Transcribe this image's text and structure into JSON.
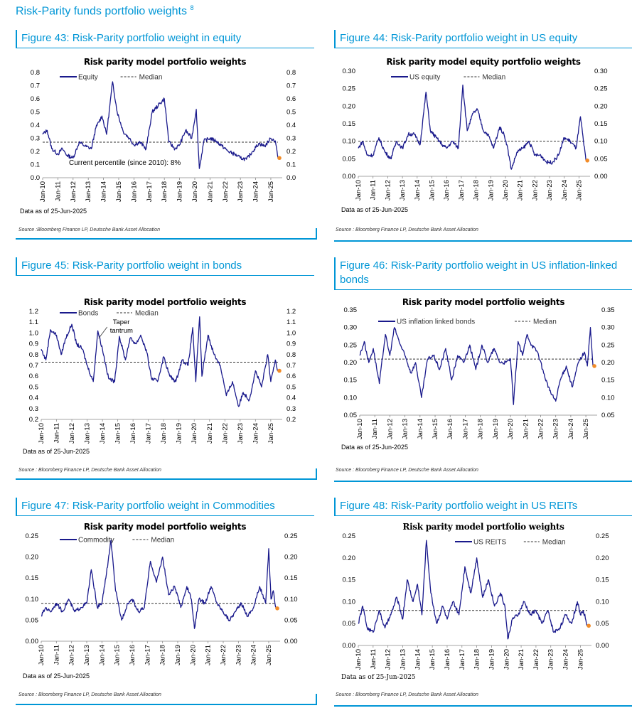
{
  "page": {
    "title": "Risk-Parity funds portfolio weights",
    "footnote_marker": "8"
  },
  "colors": {
    "accent": "#0096d6",
    "series": "#1a1a8c",
    "median": "#333333",
    "latest_marker": "#f28c28"
  },
  "panels": [
    {
      "figure_title": "Figure 43: Risk-Parity portfolio weight in equity",
      "as_of": "Data as of 25-Jun-2025",
      "source": "Source :Bloomberg Finance LP, Deutsche Bank Asset Allocation",
      "chart_data": {
        "type": "line",
        "title": "Risk parity model portfolio weights",
        "xlabel": "",
        "ylabel": "",
        "x_ticks": [
          "Jan-10",
          "Jan-11",
          "Jan-12",
          "Jan-13",
          "Jan-14",
          "Jan-15",
          "Jan-16",
          "Jan-17",
          "Jan-18",
          "Jan-19",
          "Jan-20",
          "Jan-21",
          "Jan-22",
          "Jan-23",
          "Jan-24",
          "Jan-25"
        ],
        "ylim": [
          0,
          0.8
        ],
        "y_ticks": [
          "0.0",
          "0.1",
          "0.2",
          "0.3",
          "0.4",
          "0.5",
          "0.6",
          "0.7",
          "0.8"
        ],
        "series": [
          {
            "name": "Equity",
            "x": [
              2010.0,
              2010.3,
              2010.6,
              2011.0,
              2011.3,
              2011.6,
              2012.0,
              2012.4,
              2012.8,
              2013.2,
              2013.5,
              2013.9,
              2014.2,
              2014.6,
              2014.9,
              2015.3,
              2015.7,
              2016.0,
              2016.4,
              2016.8,
              2017.2,
              2017.6,
              2018.0,
              2018.3,
              2018.7,
              2019.0,
              2019.4,
              2019.8,
              2020.1,
              2020.3,
              2020.6,
              2021.0,
              2021.4,
              2021.8,
              2022.2,
              2022.6,
              2023.0,
              2023.4,
              2023.8,
              2024.2,
              2024.6,
              2025.0,
              2025.3,
              2025.47
            ],
            "y": [
              0.33,
              0.36,
              0.22,
              0.18,
              0.22,
              0.17,
              0.15,
              0.27,
              0.24,
              0.22,
              0.38,
              0.47,
              0.33,
              0.73,
              0.5,
              0.35,
              0.3,
              0.25,
              0.27,
              0.22,
              0.5,
              0.55,
              0.6,
              0.27,
              0.22,
              0.25,
              0.36,
              0.3,
              0.52,
              0.07,
              0.28,
              0.3,
              0.28,
              0.24,
              0.2,
              0.18,
              0.15,
              0.14,
              0.2,
              0.26,
              0.24,
              0.3,
              0.28,
              0.15
            ]
          },
          {
            "name": "Median",
            "y": [
              0.27
            ]
          }
        ],
        "latest": {
          "x": 2025.47,
          "y": 0.15
        },
        "annotations": [
          "Current percentile (since 2010): 8%"
        ],
        "legend_position": "top-left"
      }
    },
    {
      "figure_title": "Figure 44: Risk-Parity portfolio weight in US equity",
      "as_of": "Data as of 25-Jun-2025",
      "source": "Source : Bloomberg Finance LP, Deutsche Bank Asset Allocation",
      "chart_data": {
        "type": "line",
        "title": "Risk parity model equity portfolio weights",
        "xlabel": "",
        "ylabel": "",
        "x_ticks": [
          "Jan-10",
          "Jan-11",
          "Jan-12",
          "Jan-13",
          "Jan-14",
          "Jan-15",
          "Jan-16",
          "Jan-17",
          "Jan-18",
          "Jan-19",
          "Jan-20",
          "Jan-21",
          "Jan-22",
          "Jan-23",
          "Jan-24",
          "Jan-25"
        ],
        "ylim": [
          0,
          0.3
        ],
        "y_ticks": [
          "0.00",
          "0.05",
          "0.10",
          "0.15",
          "0.20",
          "0.25",
          "0.30"
        ],
        "series": [
          {
            "name": "US equity",
            "x": [
              2010.0,
              2010.3,
              2010.6,
              2011.0,
              2011.4,
              2011.8,
              2012.2,
              2012.6,
              2013.0,
              2013.4,
              2013.8,
              2014.2,
              2014.6,
              2014.9,
              2015.3,
              2015.7,
              2016.0,
              2016.4,
              2016.8,
              2017.1,
              2017.4,
              2017.8,
              2018.1,
              2018.5,
              2018.8,
              2019.2,
              2019.6,
              2019.9,
              2020.1,
              2020.4,
              2020.8,
              2021.2,
              2021.6,
              2022.0,
              2022.4,
              2022.8,
              2023.2,
              2023.6,
              2024.0,
              2024.4,
              2024.8,
              2025.1,
              2025.3,
              2025.47
            ],
            "y": [
              0.08,
              0.1,
              0.06,
              0.06,
              0.11,
              0.07,
              0.05,
              0.1,
              0.08,
              0.12,
              0.12,
              0.09,
              0.24,
              0.13,
              0.11,
              0.09,
              0.08,
              0.1,
              0.08,
              0.26,
              0.13,
              0.18,
              0.19,
              0.13,
              0.12,
              0.08,
              0.14,
              0.12,
              0.09,
              0.02,
              0.07,
              0.08,
              0.1,
              0.06,
              0.06,
              0.04,
              0.04,
              0.06,
              0.11,
              0.1,
              0.08,
              0.17,
              0.1,
              0.045
            ]
          },
          {
            "name": "Median",
            "y": [
              0.1
            ]
          }
        ],
        "latest": {
          "x": 2025.47,
          "y": 0.045
        },
        "legend_position": "top-left"
      }
    },
    {
      "figure_title": "Figure 45: Risk-Parity portfolio weight in bonds",
      "as_of": "Data as of 25-Jun-2025",
      "source": "Source : Bloomberg Finance LP, Deutsche Bank Asset Allocation",
      "chart_data": {
        "type": "line",
        "title": "Risk parity model portfolio weights",
        "xlabel": "",
        "ylabel": "",
        "x_ticks": [
          "Jan-10",
          "Jan-11",
          "Jan-12",
          "Jan-13",
          "Jan-14",
          "Jan-15",
          "Jan-16",
          "Jan-17",
          "Jan-18",
          "Jan-19",
          "Jan-20",
          "Jan-21",
          "Jan-22",
          "Jan-23",
          "Jan-24",
          "Jan-25"
        ],
        "ylim": [
          0.2,
          1.2
        ],
        "y_ticks": [
          "0.2",
          "0.3",
          "0.4",
          "0.5",
          "0.6",
          "0.7",
          "0.8",
          "0.9",
          "1.0",
          "1.1",
          "1.2"
        ],
        "series": [
          {
            "name": "Bonds",
            "x": [
              2010.0,
              2010.3,
              2010.6,
              2011.0,
              2011.3,
              2011.6,
              2012.0,
              2012.3,
              2012.7,
              2013.0,
              2013.4,
              2013.7,
              2014.0,
              2014.4,
              2014.8,
              2015.1,
              2015.5,
              2015.8,
              2016.2,
              2016.5,
              2016.9,
              2017.2,
              2017.6,
              2018.0,
              2018.4,
              2018.8,
              2019.2,
              2019.6,
              2019.9,
              2020.1,
              2020.35,
              2020.5,
              2020.9,
              2021.3,
              2021.7,
              2022.1,
              2022.5,
              2022.9,
              2023.2,
              2023.6,
              2024.0,
              2024.4,
              2024.8,
              2025.0,
              2025.3,
              2025.47
            ],
            "y": [
              0.85,
              0.75,
              1.03,
              0.98,
              0.8,
              0.95,
              1.08,
              0.9,
              0.85,
              0.7,
              0.55,
              1.02,
              0.85,
              0.58,
              0.55,
              0.97,
              0.75,
              0.95,
              0.9,
              0.98,
              0.82,
              0.58,
              0.55,
              0.78,
              0.6,
              0.55,
              0.75,
              0.7,
              1.05,
              0.55,
              1.15,
              0.6,
              0.98,
              0.8,
              0.7,
              0.42,
              0.55,
              0.32,
              0.45,
              0.38,
              0.65,
              0.5,
              0.8,
              0.55,
              0.75,
              0.65
            ]
          },
          {
            "name": "Median",
            "y": [
              0.73
            ]
          }
        ],
        "latest": {
          "x": 2025.47,
          "y": 0.65
        },
        "annotations": [
          "Taper",
          "tantrum"
        ],
        "legend_position": "top-left"
      }
    },
    {
      "figure_title": "Figure 46: Risk-Parity portfolio weight in US inflation-linked bonds",
      "as_of": "Data as of 25-Jun-2025",
      "source": "Source : Bloomberg Finance LP, Deutsche Bank Asset Allocation",
      "chart_data": {
        "type": "line",
        "title": "Risk parity model portfolio weights",
        "xlabel": "",
        "ylabel": "",
        "x_ticks": [
          "Jan-10",
          "Jan-11",
          "Jan-12",
          "Jan-13",
          "Jan-14",
          "Jan-15",
          "Jan-16",
          "Jan-17",
          "Jan-18",
          "Jan-19",
          "Jan-20",
          "Jan-21",
          "Jan-22",
          "Jan-23",
          "Jan-24",
          "Jan-25"
        ],
        "ylim": [
          0.05,
          0.35
        ],
        "y_ticks": [
          "0.05",
          "0.10",
          "0.15",
          "0.20",
          "0.25",
          "0.30",
          "0.35"
        ],
        "series": [
          {
            "name": "US inflation linked bonds",
            "x": [
              2010.0,
              2010.3,
              2010.6,
              2010.9,
              2011.3,
              2011.7,
              2012.0,
              2012.3,
              2012.7,
              2013.0,
              2013.4,
              2013.7,
              2014.1,
              2014.5,
              2014.9,
              2015.3,
              2015.7,
              2016.1,
              2016.5,
              2016.9,
              2017.3,
              2017.7,
              2018.1,
              2018.5,
              2018.9,
              2019.3,
              2019.7,
              2020.0,
              2020.2,
              2020.5,
              2020.8,
              2021.1,
              2021.4,
              2021.8,
              2022.2,
              2022.6,
              2023.0,
              2023.3,
              2023.7,
              2024.1,
              2024.5,
              2024.9,
              2025.1,
              2025.3,
              2025.47
            ],
            "y": [
              0.22,
              0.26,
              0.2,
              0.24,
              0.14,
              0.28,
              0.22,
              0.3,
              0.25,
              0.22,
              0.17,
              0.2,
              0.1,
              0.21,
              0.22,
              0.18,
              0.24,
              0.15,
              0.22,
              0.2,
              0.25,
              0.18,
              0.25,
              0.2,
              0.24,
              0.2,
              0.2,
              0.21,
              0.08,
              0.26,
              0.22,
              0.28,
              0.25,
              0.23,
              0.17,
              0.12,
              0.09,
              0.15,
              0.19,
              0.13,
              0.2,
              0.23,
              0.19,
              0.3,
              0.19
            ]
          },
          {
            "name": "Median",
            "y": [
              0.21
            ]
          }
        ],
        "latest": {
          "x": 2025.47,
          "y": 0.19
        },
        "legend_position": "top-left"
      }
    },
    {
      "figure_title": "Figure 47: Risk-Parity portfolio weight in Commodities",
      "as_of": "Data as of 25-Jun-2025",
      "source": "Source : Bloomberg Finance LP, Deutsche Bank Asset Allocation",
      "chart_data": {
        "type": "line",
        "title": "Risk parity model portfolio weights",
        "xlabel": "",
        "ylabel": "",
        "x_ticks": [
          "Jan-10",
          "Jan-11",
          "Jan-12",
          "Jan-13",
          "Jan-14",
          "Jan-15",
          "Jan-16",
          "Jan-17",
          "Jan-18",
          "Jan-19",
          "Jan-20",
          "Jan-21",
          "Jan-22",
          "Jan-23",
          "Jan-24",
          "Jan-25"
        ],
        "ylim": [
          0,
          0.25
        ],
        "y_ticks": [
          "0.00",
          "0.05",
          "0.10",
          "0.15",
          "0.20",
          "0.25"
        ],
        "series": [
          {
            "name": "Commodity",
            "x": [
              2010.0,
              2010.3,
              2010.6,
              2011.0,
              2011.4,
              2011.8,
              2012.2,
              2012.6,
              2013.0,
              2013.3,
              2013.7,
              2014.0,
              2014.3,
              2014.6,
              2014.9,
              2015.3,
              2015.7,
              2016.0,
              2016.4,
              2016.8,
              2017.2,
              2017.6,
              2018.0,
              2018.4,
              2018.8,
              2019.2,
              2019.6,
              2019.9,
              2020.1,
              2020.4,
              2020.8,
              2021.2,
              2021.6,
              2022.0,
              2022.4,
              2022.8,
              2023.2,
              2023.6,
              2024.0,
              2024.4,
              2024.8,
              2025.0,
              2025.15,
              2025.3,
              2025.47
            ],
            "y": [
              0.06,
              0.08,
              0.07,
              0.09,
              0.07,
              0.1,
              0.07,
              0.08,
              0.09,
              0.17,
              0.08,
              0.09,
              0.16,
              0.24,
              0.12,
              0.05,
              0.09,
              0.1,
              0.07,
              0.08,
              0.19,
              0.14,
              0.2,
              0.11,
              0.13,
              0.08,
              0.13,
              0.1,
              0.03,
              0.1,
              0.09,
              0.13,
              0.09,
              0.07,
              0.05,
              0.07,
              0.09,
              0.06,
              0.08,
              0.13,
              0.09,
              0.22,
              0.1,
              0.12,
              0.08
            ]
          },
          {
            "name": "Median",
            "y": [
              0.09
            ]
          }
        ],
        "latest": {
          "x": 2025.47,
          "y": 0.078
        },
        "legend_position": "top-left"
      }
    },
    {
      "figure_title": "Figure 48: Risk-Parity portfolio weight in US REITs",
      "as_of": "Data as of 25-Jun-2025",
      "source": "Source : Bloomberg Finance LP, Deutsche Bank Asset Allocation",
      "chart_data": {
        "type": "line",
        "title": "Risk parity model portfolio weights",
        "xlabel": "",
        "ylabel": "",
        "x_ticks": [
          "Jan-10",
          "Jan-11",
          "Jan-12",
          "Jan-13",
          "Jan-14",
          "Jan-15",
          "Jan-16",
          "Jan-17",
          "Jan-18",
          "Jan-19",
          "Jan-20",
          "Jan-21",
          "Jan-22",
          "Jan-23",
          "Jan-24",
          "Jan-25"
        ],
        "ylim": [
          0,
          0.25
        ],
        "y_ticks": [
          "0.00",
          "0.05",
          "0.10",
          "0.15",
          "0.20",
          "0.25"
        ],
        "series": [
          {
            "name": "US REITS",
            "x": [
              2010.0,
              2010.3,
              2010.6,
              2011.0,
              2011.4,
              2011.8,
              2012.2,
              2012.6,
              2013.0,
              2013.3,
              2013.7,
              2014.0,
              2014.3,
              2014.6,
              2014.9,
              2015.3,
              2015.7,
              2016.0,
              2016.4,
              2016.8,
              2017.2,
              2017.6,
              2018.0,
              2018.4,
              2018.8,
              2019.2,
              2019.6,
              2019.9,
              2020.1,
              2020.4,
              2020.8,
              2021.2,
              2021.6,
              2022.0,
              2022.4,
              2022.8,
              2023.2,
              2023.6,
              2024.0,
              2024.4,
              2024.8,
              2025.0,
              2025.2,
              2025.47
            ],
            "y": [
              0.05,
              0.09,
              0.04,
              0.03,
              0.08,
              0.04,
              0.07,
              0.11,
              0.06,
              0.15,
              0.1,
              0.14,
              0.07,
              0.24,
              0.12,
              0.05,
              0.09,
              0.06,
              0.1,
              0.07,
              0.18,
              0.12,
              0.2,
              0.11,
              0.15,
              0.09,
              0.12,
              0.09,
              0.015,
              0.06,
              0.07,
              0.1,
              0.07,
              0.08,
              0.05,
              0.08,
              0.03,
              0.04,
              0.07,
              0.05,
              0.1,
              0.07,
              0.08,
              0.045
            ]
          },
          {
            "name": "Median",
            "y": [
              0.08
            ]
          }
        ],
        "latest": {
          "x": 2025.47,
          "y": 0.045
        },
        "legend_position": "top"
      }
    }
  ]
}
